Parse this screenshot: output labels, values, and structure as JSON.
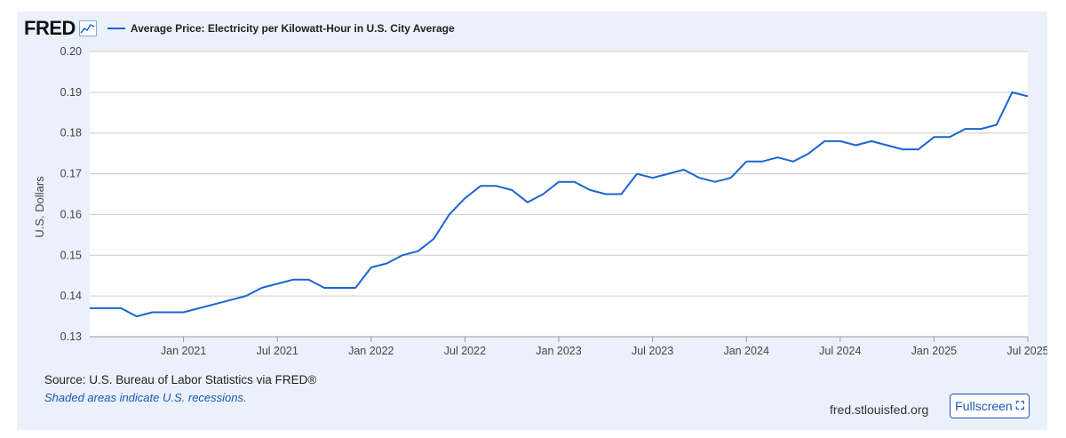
{
  "header": {
    "logo": "FRED",
    "logo_icon": "line-chart-icon",
    "legend_label": "Average Price: Electricity per Kilowatt-Hour in U.S. City Average",
    "series_color": "#1a64d4"
  },
  "footer": {
    "source": "Source: U.S. Bureau of Labor Statistics via FRED®",
    "recession_note": "Shaded areas indicate U.S. recessions.",
    "site": "fred.stlouisfed.org",
    "fullscreen_label": "Fullscreen",
    "fullscreen_icon": "expand-icon"
  },
  "chart_data": {
    "type": "line",
    "title": "",
    "xlabel": "",
    "ylabel": "U.S. Dollars",
    "ylim": [
      0.13,
      0.2
    ],
    "yticks": [
      "0.13",
      "0.14",
      "0.15",
      "0.16",
      "0.17",
      "0.18",
      "0.19",
      "0.20"
    ],
    "xticks": [
      "Jan 2021",
      "Jul 2021",
      "Jan 2022",
      "Jul 2022",
      "Jan 2023",
      "Jul 2023",
      "Jan 2024",
      "Jul 2024",
      "Jan 2025",
      "Jul 2025"
    ],
    "xrange": [
      "2020-07",
      "2025-07"
    ],
    "grid": true,
    "series": [
      {
        "name": "Average Price: Electricity per Kilowatt-Hour in U.S. City Average",
        "x": [
          "2020-07",
          "2020-08",
          "2020-09",
          "2020-10",
          "2020-11",
          "2020-12",
          "2021-01",
          "2021-02",
          "2021-03",
          "2021-04",
          "2021-05",
          "2021-06",
          "2021-07",
          "2021-08",
          "2021-09",
          "2021-10",
          "2021-11",
          "2021-12",
          "2022-01",
          "2022-02",
          "2022-03",
          "2022-04",
          "2022-05",
          "2022-06",
          "2022-07",
          "2022-08",
          "2022-09",
          "2022-10",
          "2022-11",
          "2022-12",
          "2023-01",
          "2023-02",
          "2023-03",
          "2023-04",
          "2023-05",
          "2023-06",
          "2023-07",
          "2023-08",
          "2023-09",
          "2023-10",
          "2023-11",
          "2023-12",
          "2024-01",
          "2024-02",
          "2024-03",
          "2024-04",
          "2024-05",
          "2024-06",
          "2024-07",
          "2024-08",
          "2024-09",
          "2024-10",
          "2024-11",
          "2024-12",
          "2025-01",
          "2025-02",
          "2025-03",
          "2025-04",
          "2025-05",
          "2025-06",
          "2025-07"
        ],
        "values": [
          0.137,
          0.137,
          0.137,
          0.135,
          0.136,
          0.136,
          0.136,
          0.137,
          0.138,
          0.139,
          0.14,
          0.142,
          0.143,
          0.144,
          0.144,
          0.142,
          0.142,
          0.142,
          0.147,
          0.148,
          0.15,
          0.151,
          0.154,
          0.16,
          0.164,
          0.167,
          0.167,
          0.166,
          0.163,
          0.165,
          0.168,
          0.168,
          0.166,
          0.165,
          0.165,
          0.17,
          0.169,
          0.17,
          0.171,
          0.169,
          0.168,
          0.169,
          0.173,
          0.173,
          0.174,
          0.173,
          0.175,
          0.178,
          0.178,
          0.177,
          0.178,
          0.177,
          0.176,
          0.176,
          0.179,
          0.179,
          0.181,
          0.181,
          0.182,
          0.19,
          0.189
        ]
      }
    ]
  }
}
